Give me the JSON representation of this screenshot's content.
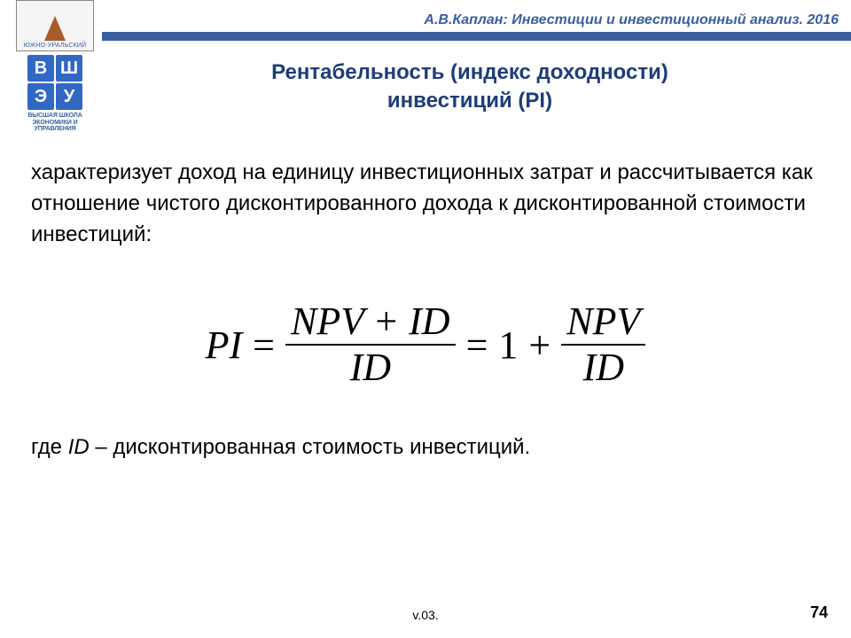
{
  "header": {
    "text": "А.В.Каплан: Инвестиции и инвестиционный анализ. 2016",
    "bar_color": "#3a5fa1",
    "text_color": "#3a5fa1"
  },
  "logo": {
    "top_caption": "ЮЖНО-УРАЛЬСКИЙ",
    "grid": [
      "В",
      "Ш",
      "Э",
      "У"
    ],
    "subtitle_line1": "ВЫСШАЯ ШКОЛА",
    "subtitle_line2": "ЭКОНОМИКИ И УПРАВЛЕНИЯ",
    "cell_color": "#3068c4"
  },
  "title": {
    "line1": "Рентабельность (индекс доходности)",
    "line2": "инвестиций (PI)",
    "color": "#1f3d7a",
    "fontsize": 24
  },
  "para1": "характеризует доход на единицу инвестиционных затрат и рассчитывается как отношение чистого дисконтированного дохода к дисконтированной стоимости инвестиций:",
  "formula": {
    "lhs": "PI",
    "eq": "=",
    "frac1_num_a": "NPV",
    "frac1_num_plus": "+",
    "frac1_num_b": "ID",
    "frac1_den": "ID",
    "eq2": "=",
    "one": "1",
    "plus": "+",
    "frac2_num": "NPV",
    "frac2_den": "ID",
    "fontsize": 44,
    "font": "Times New Roman"
  },
  "para2_prefix": "где ",
  "para2_id": "ID",
  "para2_rest": " – дисконтированная стоимость инвестиций.",
  "footer": {
    "version": "v.03.",
    "page": "74"
  },
  "colors": {
    "background": "#ffffff",
    "text": "#000000"
  }
}
